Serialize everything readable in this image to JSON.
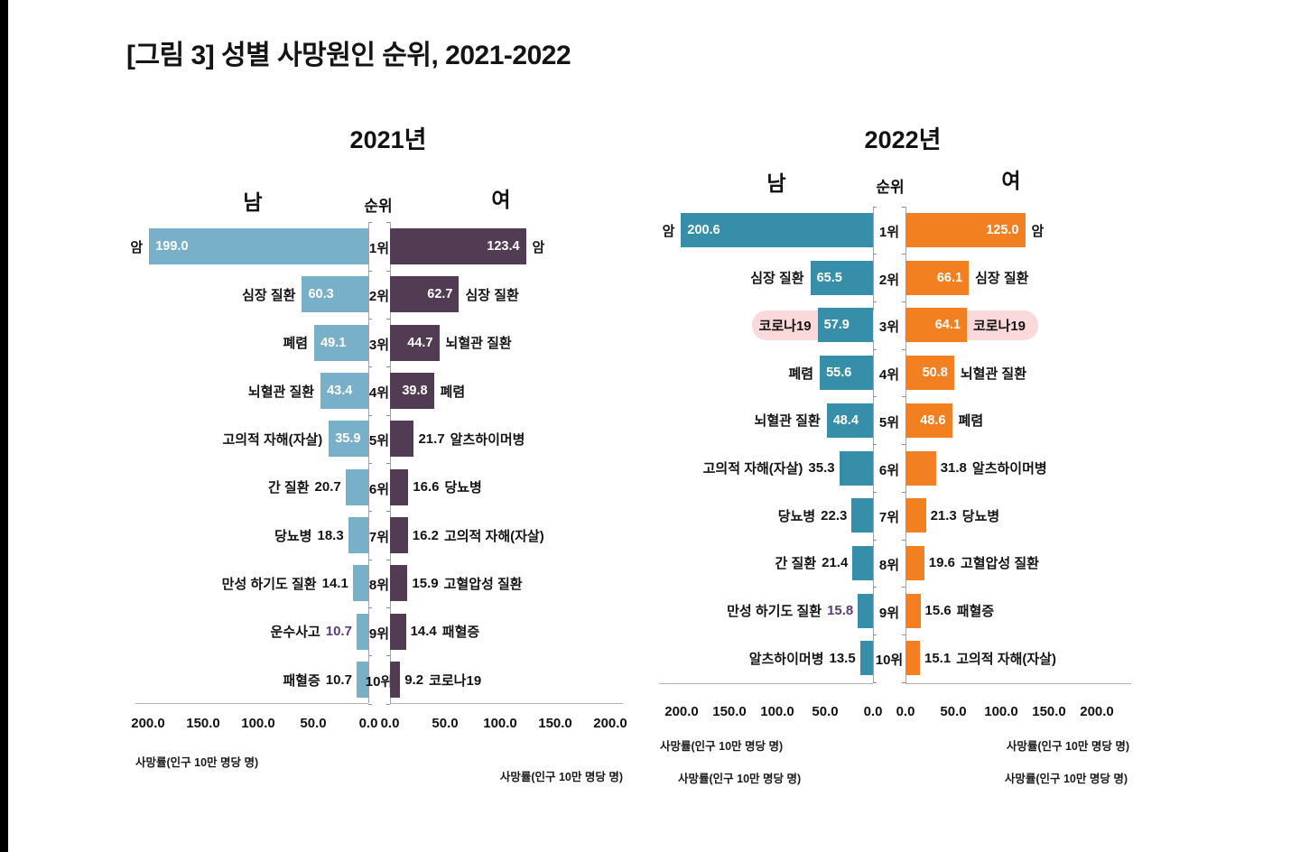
{
  "page": {
    "title": "[그림 3] 성별 사망원인 순위, 2021-2022"
  },
  "colors": {
    "male_2021": "#78afc9",
    "female_2021": "#523c53",
    "male_2022": "#368ea8",
    "female_2022": "#f28021",
    "highlight_band": "#fbd8da",
    "accent_value": "#5b3c79",
    "text": "#141414"
  },
  "chart_data": [
    {
      "type": "bar",
      "title": "2021년",
      "group_headers": {
        "male": "남",
        "rank": "순위",
        "female": "여"
      },
      "axis_label": "사망률(인구 10만 명당 명)",
      "xlim": [
        0,
        200
      ],
      "ticks": [
        200,
        150,
        100,
        50,
        0
      ],
      "male_color": "#78afc9",
      "female_color": "#523c53",
      "rows": [
        {
          "rank": "1위",
          "male_label": "암",
          "male_value": 199.0,
          "female_value": 123.4,
          "female_label": "암"
        },
        {
          "rank": "2위",
          "male_label": "심장 질환",
          "male_value": 60.3,
          "female_value": 62.7,
          "female_label": "심장 질환"
        },
        {
          "rank": "3위",
          "male_label": "폐렴",
          "male_value": 49.1,
          "female_value": 44.7,
          "female_label": "뇌혈관 질환"
        },
        {
          "rank": "4위",
          "male_label": "뇌혈관 질환",
          "male_value": 43.4,
          "female_value": 39.8,
          "female_label": "폐렴"
        },
        {
          "rank": "5위",
          "male_label": "고의적 자해(자살)",
          "male_value": 35.9,
          "female_value": 21.7,
          "female_label": "알츠하이머병"
        },
        {
          "rank": "6위",
          "male_label": "간 질환",
          "male_value": 20.7,
          "female_value": 16.6,
          "female_label": "당뇨병"
        },
        {
          "rank": "7위",
          "male_label": "당뇨병",
          "male_value": 18.3,
          "female_value": 16.2,
          "female_label": "고의적 자해(자살)"
        },
        {
          "rank": "8위",
          "male_label": "만성 하기도 질환",
          "male_value": 14.1,
          "female_value": 15.9,
          "female_label": "고혈압성 질환"
        },
        {
          "rank": "9위",
          "male_label": "운수사고",
          "male_value": 10.7,
          "male_value_accent": true,
          "female_value": 14.4,
          "female_label": "패혈증"
        },
        {
          "rank": "10위",
          "male_label": "패혈증",
          "male_value": 10.7,
          "female_value": 9.2,
          "female_label": "코로나19"
        }
      ]
    },
    {
      "type": "bar",
      "title": "2022년",
      "group_headers": {
        "male": "남",
        "rank": "순위",
        "female": "여"
      },
      "axis_label": "사망률(인구 10만 명당 명)",
      "xlim": [
        0,
        200
      ],
      "ticks": [
        200,
        150,
        100,
        50,
        0
      ],
      "male_color": "#368ea8",
      "female_color": "#f28021",
      "rows": [
        {
          "rank": "1위",
          "male_label": "암",
          "male_value": 200.6,
          "female_value": 125.0,
          "female_label": "암"
        },
        {
          "rank": "2위",
          "male_label": "심장 질환",
          "male_value": 65.5,
          "female_value": 66.1,
          "female_label": "심장 질환"
        },
        {
          "rank": "3위",
          "male_label": "코로나19",
          "male_value": 57.9,
          "female_value": 64.1,
          "female_label": "코로나19",
          "highlight": true
        },
        {
          "rank": "4위",
          "male_label": "폐렴",
          "male_value": 55.6,
          "female_value": 50.8,
          "female_label": "뇌혈관 질환"
        },
        {
          "rank": "5위",
          "male_label": "뇌혈관 질환",
          "male_value": 48.4,
          "female_value": 48.6,
          "female_label": "폐렴"
        },
        {
          "rank": "6위",
          "male_label": "고의적 자해(자살)",
          "male_value": 35.3,
          "female_value": 31.8,
          "female_label": "알츠하이머병"
        },
        {
          "rank": "7위",
          "male_label": "당뇨병",
          "male_value": 22.3,
          "female_value": 21.3,
          "female_label": "당뇨병"
        },
        {
          "rank": "8위",
          "male_label": "간 질환",
          "male_value": 21.4,
          "female_value": 19.6,
          "female_label": "고혈압성 질환"
        },
        {
          "rank": "9위",
          "male_label": "만성 하기도 질환",
          "male_value": 15.8,
          "male_value_accent": true,
          "female_value": 15.6,
          "female_label": "패혈증"
        },
        {
          "rank": "10위",
          "male_label": "알츠하이머병",
          "male_value": 13.5,
          "female_value": 15.1,
          "female_label": "고의적 자해(자살)"
        }
      ]
    }
  ]
}
